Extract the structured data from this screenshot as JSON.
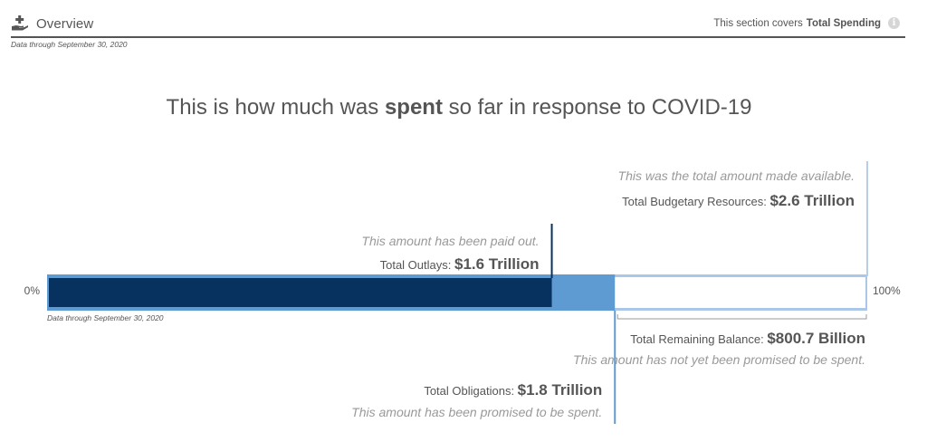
{
  "header": {
    "title": "Overview",
    "covers_prefix": "This section covers",
    "covers_value": "Total Spending",
    "info_glyph": "i",
    "data_through": "Data through September 30, 2020"
  },
  "headline": {
    "before": "This is how much was",
    "bold": "spent",
    "after": "so far in response to COVID-19"
  },
  "chart_data": {
    "type": "bar",
    "units": "dollars",
    "scale_min_label": "0%",
    "scale_max_label": "100%",
    "data_through": "Data through September 30, 2020",
    "max_value_trillions": 2.6,
    "segments": [
      {
        "key": "budgetary",
        "label": "Total Budgetary Resources:",
        "value_label": "$2.6 Trillion",
        "value_trillions": 2.6,
        "note": "This was the total amount made available.",
        "color": "#ffffff",
        "line_color": "#b8cde6"
      },
      {
        "key": "obligations",
        "label": "Total Obligations:",
        "value_label": "$1.8 Trillion",
        "value_trillions": 1.8,
        "note": "This amount has been promised to be spent.",
        "color": "#5f9bd3",
        "line_color": "#5f9bd3"
      },
      {
        "key": "outlays",
        "label": "Total Outlays:",
        "value_label": "$1.6 Trillion",
        "value_trillions": 1.6,
        "note": "This amount has been paid out.",
        "color": "#07325f",
        "line_color": "#07325f"
      }
    ],
    "remaining": {
      "label": "Total Remaining Balance:",
      "value_label": "$800.7 Billion",
      "value_billions": 800.7,
      "note": "This amount has not yet been promised to be spent.",
      "line_color": "#999999"
    }
  },
  "colors": {
    "text": "#555555",
    "note": "#999999",
    "outer_band": "#aac7e8"
  }
}
